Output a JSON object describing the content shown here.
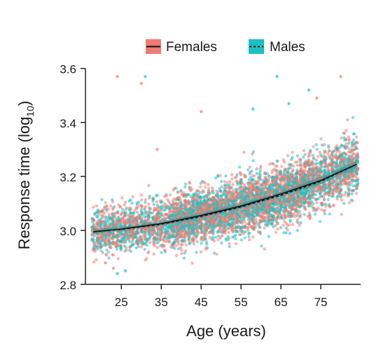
{
  "chart_data": {
    "type": "scatter",
    "xlabel": "Age (years)",
    "ylabel_main": "Response time (log",
    "ylabel_sub": "10",
    "ylabel_close": ")",
    "xlim": [
      16,
      85
    ],
    "ylim": [
      2.8,
      3.62
    ],
    "xticks": [
      25,
      35,
      45,
      55,
      65,
      75
    ],
    "yticks": [
      2.8,
      3.0,
      3.2,
      3.4,
      3.6
    ],
    "ytick_labels": [
      "2.8",
      "3.0",
      "3.2",
      "3.4",
      "3.6"
    ],
    "grid": false,
    "legend_position": "top",
    "series": [
      {
        "name": "Females",
        "color": "#f07b72",
        "line_style": "solid",
        "point_spread": 0.13,
        "point_density": 70,
        "fit": [
          [
            18,
            2.995
          ],
          [
            25,
            3.005
          ],
          [
            35,
            3.025
          ],
          [
            45,
            3.055
          ],
          [
            55,
            3.09
          ],
          [
            65,
            3.135
          ],
          [
            75,
            3.185
          ],
          [
            84,
            3.245
          ]
        ]
      },
      {
        "name": "Males",
        "color": "#1fc0c0",
        "line_style": "dashed",
        "point_spread": 0.12,
        "point_density": 60,
        "fit": [
          [
            18,
            2.995
          ],
          [
            25,
            3.004
          ],
          [
            35,
            3.023
          ],
          [
            45,
            3.052
          ],
          [
            55,
            3.087
          ],
          [
            65,
            3.13
          ],
          [
            75,
            3.182
          ],
          [
            84,
            3.245
          ]
        ]
      }
    ],
    "outliers": [
      {
        "series": "Females",
        "x": 24,
        "y": 3.57
      },
      {
        "series": "Males",
        "x": 31,
        "y": 3.57
      },
      {
        "series": "Females",
        "x": 30,
        "y": 3.545
      },
      {
        "series": "Males",
        "x": 64,
        "y": 3.57
      },
      {
        "series": "Females",
        "x": 80,
        "y": 3.57
      },
      {
        "series": "Females",
        "x": 74,
        "y": 3.49
      },
      {
        "series": "Males",
        "x": 72,
        "y": 3.52
      },
      {
        "series": "Females",
        "x": 45,
        "y": 3.44
      },
      {
        "series": "Males",
        "x": 67,
        "y": 3.47
      },
      {
        "series": "Females",
        "x": 34,
        "y": 3.3
      },
      {
        "series": "Males",
        "x": 58,
        "y": 3.45
      },
      {
        "series": "Females",
        "x": 21,
        "y": 2.88
      },
      {
        "series": "Males",
        "x": 24,
        "y": 2.84
      },
      {
        "series": "Females",
        "x": 23,
        "y": 2.86
      },
      {
        "series": "Males",
        "x": 26,
        "y": 2.85
      }
    ]
  }
}
